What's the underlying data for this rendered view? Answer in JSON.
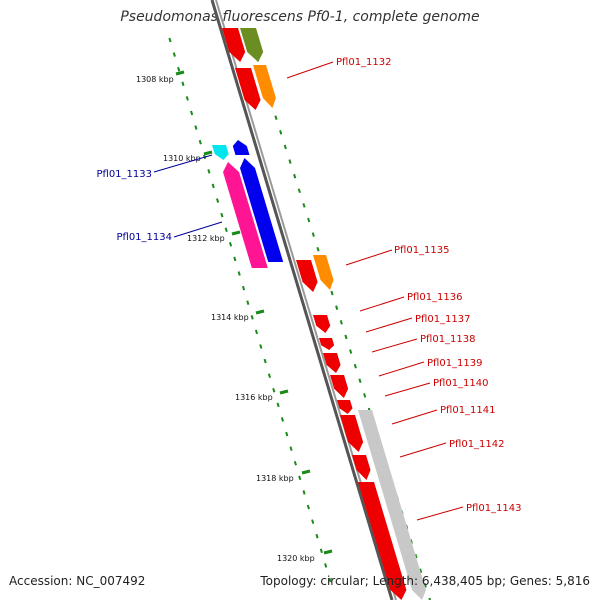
{
  "title": "Pseudomonas fluorescens Pf0-1, complete genome",
  "footer": {
    "accession": "Accession: NC_007492",
    "stats": "Topology: circular; Length: 6,438,405 bp; Genes: 5,816"
  },
  "colors": {
    "backbone": "#7a7a7a",
    "tick": "#1a8a1a",
    "label_forward": "#cc0000",
    "label_reverse": "#000099",
    "scale_text": "#111111"
  },
  "scale_ticks": [
    "1308 kbp",
    "1310 kbp",
    "1312 kbp",
    "1314 kbp",
    "1316 kbp",
    "1318 kbp",
    "1320 kbp"
  ],
  "gene_labels": [
    {
      "text": "Pfl01_1132",
      "strand": "forward"
    },
    {
      "text": "Pfl01_1133",
      "strand": "reverse"
    },
    {
      "text": "Pfl01_1134",
      "strand": "reverse"
    },
    {
      "text": "Pfl01_1135",
      "strand": "forward"
    },
    {
      "text": "Pfl01_1136",
      "strand": "forward"
    },
    {
      "text": "Pfl01_1137",
      "strand": "forward"
    },
    {
      "text": "Pfl01_1138",
      "strand": "forward"
    },
    {
      "text": "Pfl01_1139",
      "strand": "forward"
    },
    {
      "text": "Pfl01_1140",
      "strand": "forward"
    },
    {
      "text": "Pfl01_1141",
      "strand": "forward"
    },
    {
      "text": "Pfl01_1142",
      "strand": "forward"
    },
    {
      "text": "Pfl01_1143",
      "strand": "forward"
    }
  ]
}
